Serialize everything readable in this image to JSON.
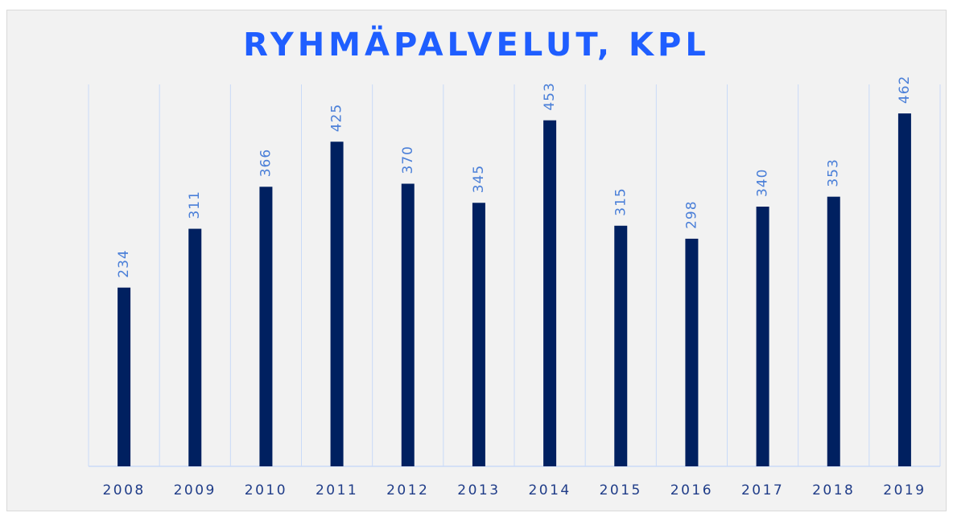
{
  "chart_data": {
    "type": "bar",
    "title": "RYHMÄPALVELUT, KPL",
    "categories": [
      "2008",
      "2009",
      "2010",
      "2011",
      "2012",
      "2013",
      "2014",
      "2015",
      "2016",
      "2017",
      "2018",
      "2019"
    ],
    "values": [
      234,
      311,
      366,
      425,
      370,
      345,
      453,
      315,
      298,
      340,
      353,
      462
    ],
    "color": "#002060",
    "ylim": [
      0,
      500
    ]
  }
}
